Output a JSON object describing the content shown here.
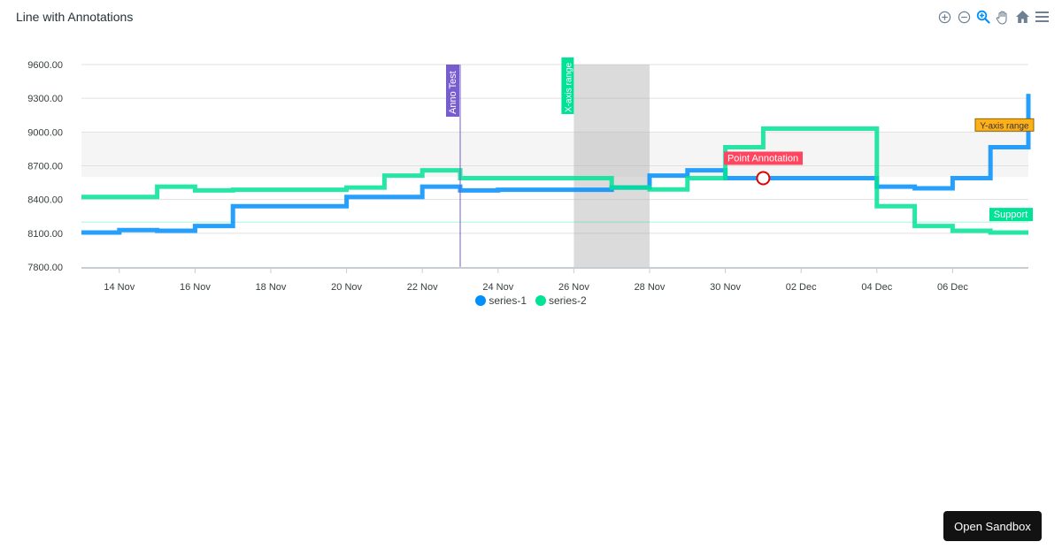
{
  "header": {
    "title": "Line with Annotations"
  },
  "toolbar": {
    "icons": [
      "zoom-in-icon",
      "zoom-out-icon",
      "selection-zoom-icon",
      "pan-hand-icon",
      "home-reset-icon",
      "menu-icon"
    ],
    "active_color": "#008ffb",
    "inactive_color": "#6e8192"
  },
  "colors": {
    "series_1": "#008ffb",
    "series_2": "#00e396",
    "anno_test": "#775dd0",
    "x_range_fill": "#b0b0b0",
    "y_range_fill": "#f2f2f2",
    "y_range_label_bg": "#feb019",
    "point_label_bg": "#ff4560",
    "support_line": "#00e396"
  },
  "annotations": {
    "x_line_label": "Anno Test",
    "x_range_label": "X-axis range",
    "y_range_label": "Y-axis range",
    "y_line_label": "Support",
    "point_label": "Point Annotation"
  },
  "legend": {
    "items": [
      {
        "label": "series-1",
        "color": "#008ffb"
      },
      {
        "label": "series-2",
        "color": "#00e396"
      }
    ]
  },
  "footer": {
    "open_sandbox": "Open Sandbox"
  },
  "chart_data": {
    "type": "line",
    "title": "Line with Annotations",
    "curve": "stepline",
    "xlabel": "",
    "ylabel": "",
    "ylim": [
      7800,
      9600
    ],
    "yticks": [
      "9600.00",
      "9300.00",
      "9000.00",
      "8700.00",
      "8400.00",
      "8100.00",
      "7800.00"
    ],
    "xticks": [
      "14 Nov",
      "16 Nov",
      "18 Nov",
      "20 Nov",
      "22 Nov",
      "24 Nov",
      "26 Nov",
      "28 Nov",
      "30 Nov",
      "02 Dec",
      "04 Dec",
      "06 Dec"
    ],
    "x": [
      "13 Nov",
      "14 Nov",
      "15 Nov",
      "16 Nov",
      "17 Nov",
      "18 Nov",
      "19 Nov",
      "20 Nov",
      "21 Nov",
      "22 Nov",
      "23 Nov",
      "24 Nov",
      "25 Nov",
      "26 Nov",
      "27 Nov",
      "28 Nov",
      "29 Nov",
      "30 Nov",
      "01 Dec",
      "02 Dec",
      "03 Dec",
      "04 Dec",
      "05 Dec",
      "06 Dec",
      "07 Dec",
      "08 Dec"
    ],
    "series": [
      {
        "name": "series-1",
        "values": [
          8107,
          8128,
          8122,
          8165,
          8340,
          8340,
          8340,
          8423,
          8423,
          8514,
          8481,
          8487,
          8487,
          8487,
          8506,
          8613,
          8660,
          8590,
          8590,
          8590,
          8590,
          8514,
          8500,
          8590,
          8865,
          9340
        ]
      },
      {
        "name": "series-2",
        "values": [
          8423,
          8423,
          8514,
          8481,
          8487,
          8487,
          8487,
          8506,
          8613,
          8660,
          8590,
          8590,
          8590,
          8590,
          8506,
          8490,
          8590,
          8865,
          9030,
          9030,
          9030,
          8340,
          8165,
          8122,
          8107,
          8107
        ]
      }
    ],
    "annotations": {
      "xaxis_line": {
        "x": "23 Nov",
        "label": "Anno Test"
      },
      "xaxis_range": {
        "x": "26 Nov",
        "x2": "28 Nov",
        "label": "X-axis range"
      },
      "yaxis_range": {
        "y": 8600,
        "y2": 9000,
        "label": "Y-axis range"
      },
      "yaxis_line": {
        "y": 8200,
        "label": "Support"
      },
      "point": {
        "x": "01 Dec",
        "y": 8590,
        "label": "Point Annotation"
      }
    },
    "grid": true,
    "legend_position": "bottom"
  }
}
